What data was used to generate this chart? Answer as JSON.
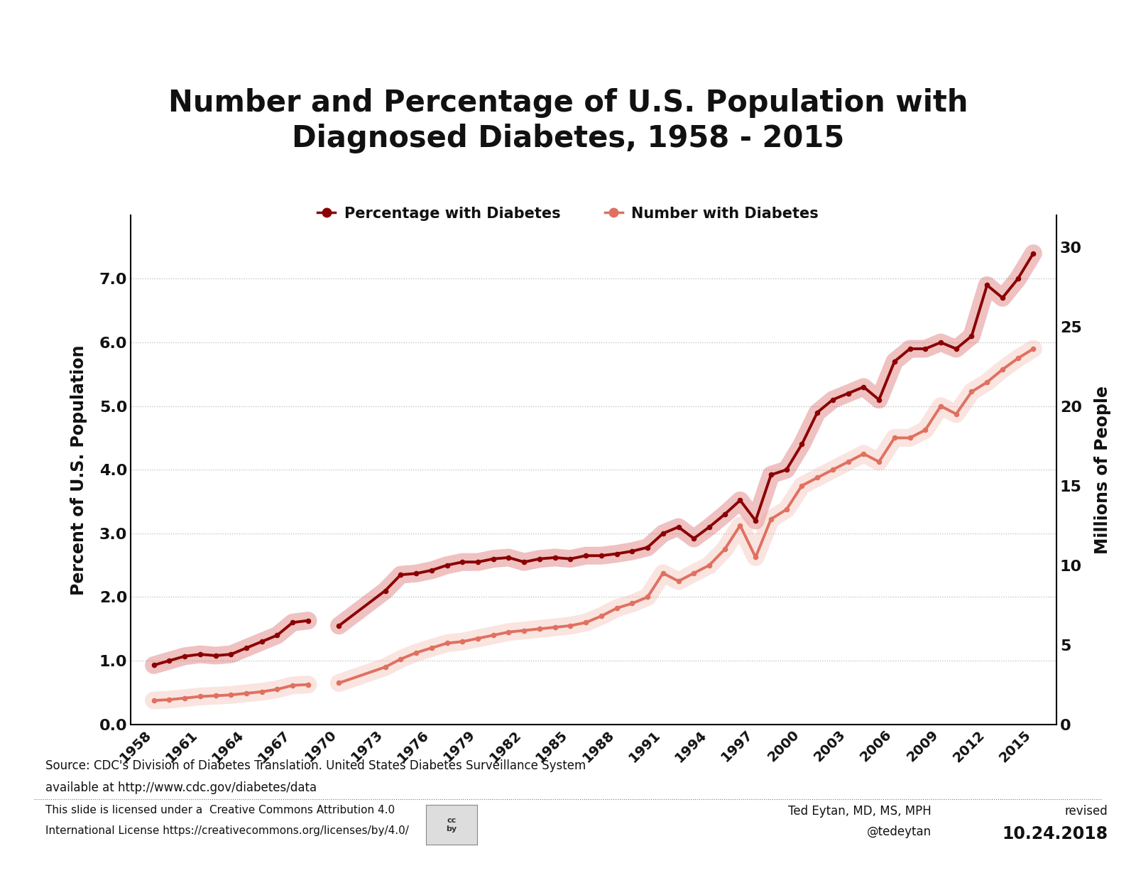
{
  "title": "Number and Percentage of U.S. Population with\nDiagnosed Diabetes, 1958 - 2015",
  "ylabel_left": "Percent of U.S. Population",
  "ylabel_right": "Millions of People",
  "legend_pct": "Percentage with Diabetes",
  "legend_num": "Number with Diabetes",
  "source_line1": "Source: CDC's Division of Diabetes Translation. United States Diabetes Surveillance System",
  "source_line2": "available at http://www.cdc.gov/diabetes/data",
  "license_line1": "This slide is licensed under a  Creative Commons Attribution 4.0",
  "license_line2": "International License https://creativecommons.org/licenses/by/4.0/",
  "author_line1": "Ted Eytan, MD, MS, MPH",
  "author_line2": "@tedeytan",
  "revised_label": "revised",
  "revised_date": "10.24.2018",
  "color_pct": "#8B0000",
  "color_num": "#E07060",
  "color_pct_glow": "#CC3333",
  "color_num_glow": "#F0A898",
  "years_pct_seg1": [
    1958,
    1959,
    1960,
    1961,
    1962,
    1963,
    1964,
    1965,
    1966,
    1967,
    1968
  ],
  "pct_seg1": [
    0.93,
    1.0,
    1.07,
    1.1,
    1.08,
    1.1,
    1.2,
    1.3,
    1.4,
    1.6,
    1.63
  ],
  "years_pct_seg2": [
    1970,
    1973,
    1974,
    1975,
    1976,
    1977,
    1978,
    1979,
    1980,
    1981,
    1982,
    1983,
    1984,
    1985,
    1986,
    1987,
    1988,
    1989,
    1990,
    1991,
    1992,
    1993,
    1994,
    1995,
    1996,
    1997,
    1998,
    1999,
    2000,
    2001,
    2002,
    2003,
    2004,
    2005,
    2006,
    2007,
    2008,
    2009,
    2010,
    2011,
    2012,
    2013,
    2014,
    2015
  ],
  "pct_seg2": [
    1.55,
    2.1,
    2.35,
    2.37,
    2.42,
    2.5,
    2.55,
    2.55,
    2.6,
    2.62,
    2.55,
    2.6,
    2.62,
    2.6,
    2.65,
    2.65,
    2.68,
    2.72,
    2.78,
    3.0,
    3.1,
    2.92,
    3.1,
    3.3,
    3.52,
    3.2,
    3.92,
    4.0,
    4.4,
    4.9,
    5.1,
    5.2,
    5.3,
    5.1,
    5.7,
    5.9,
    5.9,
    6.0,
    5.9,
    6.1,
    6.9,
    6.7,
    7.0,
    7.4
  ],
  "years_num_seg1": [
    1958,
    1959,
    1960,
    1961,
    1962,
    1963,
    1964,
    1965,
    1966,
    1967,
    1968
  ],
  "num_seg1": [
    1.5,
    1.55,
    1.65,
    1.75,
    1.8,
    1.85,
    1.95,
    2.05,
    2.2,
    2.45,
    2.5
  ],
  "years_num_seg2": [
    1970,
    1973,
    1974,
    1975,
    1976,
    1977,
    1978,
    1979,
    1980,
    1981,
    1982,
    1983,
    1984,
    1985,
    1986,
    1987,
    1988,
    1989,
    1990,
    1991,
    1992,
    1993,
    1994,
    1995,
    1996,
    1997,
    1998,
    1999,
    2000,
    2001,
    2002,
    2003,
    2004,
    2005,
    2006,
    2007,
    2008,
    2009,
    2010,
    2011,
    2012,
    2013,
    2014,
    2015
  ],
  "num_seg2": [
    2.6,
    3.6,
    4.1,
    4.5,
    4.8,
    5.1,
    5.2,
    5.4,
    5.6,
    5.8,
    5.9,
    6.0,
    6.1,
    6.2,
    6.4,
    6.8,
    7.3,
    7.6,
    8.0,
    9.5,
    9.0,
    9.5,
    10.0,
    11.0,
    12.5,
    10.5,
    12.9,
    13.5,
    15.0,
    15.5,
    16.0,
    16.5,
    17.0,
    16.5,
    18.0,
    18.0,
    18.5,
    20.0,
    19.5,
    20.9,
    21.5,
    22.3,
    23.0,
    23.6
  ],
  "xtick_labels": [
    "1958",
    "1961",
    "1964",
    "1967",
    "1970",
    "1973",
    "1976",
    "1979",
    "1982",
    "1985",
    "1988",
    "1991",
    "1994",
    "1997",
    "2000",
    "2003",
    "2006",
    "2009",
    "2012",
    "2015"
  ],
  "xtick_years": [
    1958,
    1961,
    1964,
    1967,
    1970,
    1973,
    1976,
    1979,
    1982,
    1985,
    1988,
    1991,
    1994,
    1997,
    2000,
    2003,
    2006,
    2009,
    2012,
    2015
  ],
  "ylim_left": [
    0.0,
    8.0
  ],
  "ylim_right": [
    0,
    32
  ],
  "yticks_left": [
    0.0,
    1.0,
    2.0,
    3.0,
    4.0,
    5.0,
    6.0,
    7.0
  ],
  "yticks_right": [
    0,
    5,
    10,
    15,
    20,
    25,
    30
  ],
  "background_color": "#FFFFFF",
  "xlim": [
    1956.5,
    2016.5
  ]
}
